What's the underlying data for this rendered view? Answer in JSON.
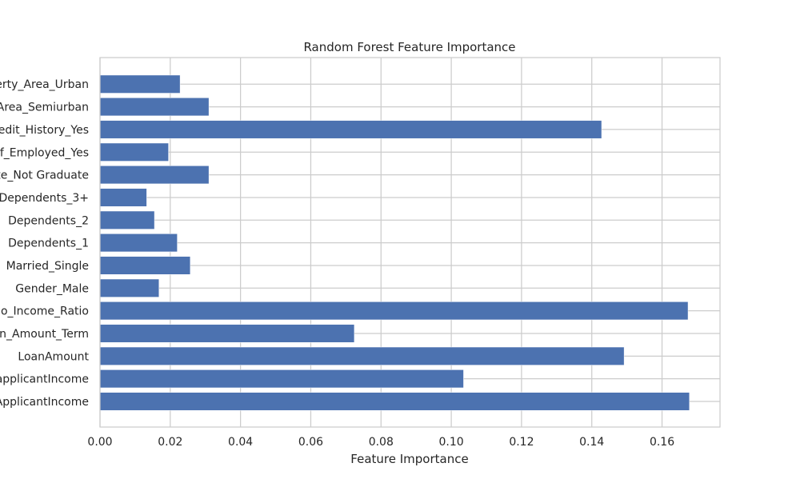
{
  "chart_data": {
    "type": "bar",
    "orientation": "horizontal",
    "title": "Random Forest Feature Importance",
    "xlabel": "Feature Importance",
    "ylabel": "",
    "xlim": [
      0,
      0.1765
    ],
    "xticks": [
      "0.00",
      "0.02",
      "0.04",
      "0.06",
      "0.08",
      "0.10",
      "0.12",
      "0.14",
      "0.16"
    ],
    "grid": true,
    "legend": "none",
    "bar_color": "#4c72b0",
    "categories": [
      "ApplicantIncome",
      "applicantIncome",
      "LoanAmount",
      "n_Amount_Term",
      "o_Income_Ratio",
      "Gender_Male",
      "Married_Single",
      "Dependents_1",
      "Dependents_2",
      "Dependents_3+",
      "te_Not Graduate",
      "f_Employed_Yes",
      "edit_History_Yes",
      "Area_Semiurban",
      "erty_Area_Urban"
    ],
    "values": [
      0.1678,
      0.1035,
      0.1492,
      0.0724,
      0.1674,
      0.0168,
      0.0257,
      0.022,
      0.0155,
      0.0133,
      0.031,
      0.0195,
      0.1428,
      0.031,
      0.0228
    ]
  }
}
